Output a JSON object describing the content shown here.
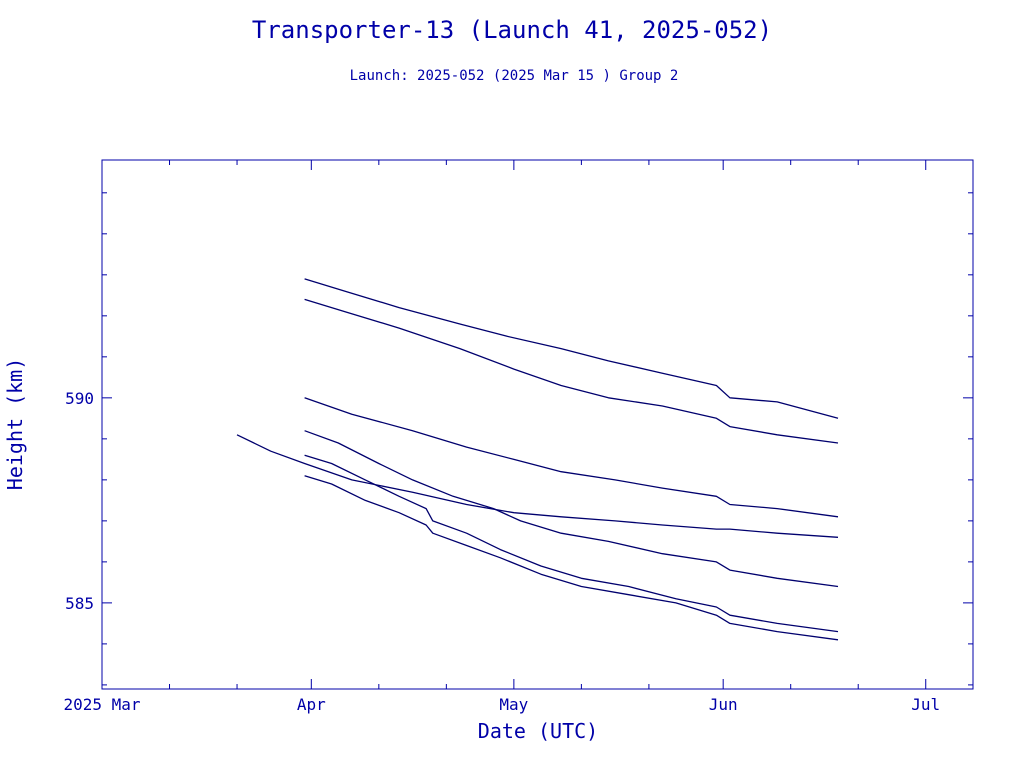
{
  "chart_data": {
    "type": "line",
    "title": "Transporter-13 (Launch 41, 2025-052)",
    "subtitle": "Launch: 2025-052  (2025 Mar 15 )  Group 2",
    "xlabel": "Date (UTC)",
    "ylabel": "Height (km)",
    "x_tick_labels": [
      "2025 Mar",
      "Apr",
      "May",
      "Jun",
      "Jul"
    ],
    "x_tick_dates": [
      "2025-03-01",
      "2025-04-01",
      "2025-05-01",
      "2025-06-01",
      "2025-07-01"
    ],
    "y_tick_labels": [
      "585",
      "590"
    ],
    "y_tick_values": [
      585,
      590
    ],
    "xlim": [
      "2025-03-01",
      "2025-07-08"
    ],
    "ylim": [
      582.9,
      595.8
    ],
    "grid": false,
    "colors": {
      "line": "#00006e",
      "axis": "#0000a8",
      "text": "#0000a8"
    },
    "series": [
      {
        "points": [
          [
            "2025-03-31",
            592.9
          ],
          [
            "2025-04-06",
            592.6
          ],
          [
            "2025-04-14",
            592.2
          ],
          [
            "2025-04-23",
            591.8
          ],
          [
            "2025-04-30",
            591.5
          ],
          [
            "2025-05-08",
            591.2
          ],
          [
            "2025-05-15",
            590.9
          ],
          [
            "2025-05-23",
            590.6
          ],
          [
            "2025-05-31",
            590.3
          ],
          [
            "2025-06-02",
            590.0
          ],
          [
            "2025-06-09",
            589.9
          ],
          [
            "2025-06-18",
            589.5
          ]
        ]
      },
      {
        "points": [
          [
            "2025-03-31",
            592.4
          ],
          [
            "2025-04-06",
            592.1
          ],
          [
            "2025-04-14",
            591.7
          ],
          [
            "2025-04-23",
            591.2
          ],
          [
            "2025-05-01",
            590.7
          ],
          [
            "2025-05-08",
            590.3
          ],
          [
            "2025-05-15",
            590.0
          ],
          [
            "2025-05-23",
            589.8
          ],
          [
            "2025-05-31",
            589.5
          ],
          [
            "2025-06-02",
            589.3
          ],
          [
            "2025-06-09",
            589.1
          ],
          [
            "2025-06-18",
            588.9
          ]
        ]
      },
      {
        "points": [
          [
            "2025-03-31",
            590.0
          ],
          [
            "2025-04-07",
            589.6
          ],
          [
            "2025-04-16",
            589.2
          ],
          [
            "2025-04-24",
            588.8
          ],
          [
            "2025-05-01",
            588.5
          ],
          [
            "2025-05-08",
            588.2
          ],
          [
            "2025-05-16",
            588.0
          ],
          [
            "2025-05-23",
            587.8
          ],
          [
            "2025-05-31",
            587.6
          ],
          [
            "2025-06-02",
            587.4
          ],
          [
            "2025-06-09",
            587.3
          ],
          [
            "2025-06-18",
            587.1
          ]
        ]
      },
      {
        "points": [
          [
            "2025-03-31",
            589.2
          ],
          [
            "2025-04-05",
            588.9
          ],
          [
            "2025-04-11",
            588.4
          ],
          [
            "2025-04-16",
            588.0
          ],
          [
            "2025-04-22",
            587.6
          ],
          [
            "2025-04-28",
            587.3
          ],
          [
            "2025-05-02",
            587.0
          ],
          [
            "2025-05-08",
            586.7
          ],
          [
            "2025-05-15",
            586.5
          ],
          [
            "2025-05-23",
            586.2
          ],
          [
            "2025-05-31",
            586.0
          ],
          [
            "2025-06-02",
            585.8
          ],
          [
            "2025-06-09",
            585.6
          ],
          [
            "2025-06-18",
            585.4
          ]
        ]
      },
      {
        "points": [
          [
            "2025-03-21",
            589.1
          ],
          [
            "2025-03-26",
            588.7
          ],
          [
            "2025-03-31",
            588.4
          ],
          [
            "2025-04-07",
            588.0
          ],
          [
            "2025-04-16",
            587.7
          ],
          [
            "2025-04-24",
            587.4
          ],
          [
            "2025-05-01",
            587.2
          ],
          [
            "2025-05-08",
            587.1
          ],
          [
            "2025-05-16",
            587.0
          ],
          [
            "2025-05-23",
            586.9
          ],
          [
            "2025-05-31",
            586.8
          ],
          [
            "2025-06-02",
            586.8
          ],
          [
            "2025-06-09",
            586.7
          ],
          [
            "2025-06-18",
            586.6
          ]
        ]
      },
      {
        "points": [
          [
            "2025-03-31",
            588.6
          ],
          [
            "2025-04-04",
            588.4
          ],
          [
            "2025-04-09",
            588.0
          ],
          [
            "2025-04-14",
            587.6
          ],
          [
            "2025-04-18",
            587.3
          ],
          [
            "2025-04-19",
            587.0
          ],
          [
            "2025-04-24",
            586.7
          ],
          [
            "2025-04-29",
            586.3
          ],
          [
            "2025-05-05",
            585.9
          ],
          [
            "2025-05-11",
            585.6
          ],
          [
            "2025-05-18",
            585.4
          ],
          [
            "2025-05-25",
            585.1
          ],
          [
            "2025-05-31",
            584.9
          ],
          [
            "2025-06-02",
            584.7
          ],
          [
            "2025-06-09",
            584.5
          ],
          [
            "2025-06-18",
            584.3
          ]
        ]
      },
      {
        "points": [
          [
            "2025-03-31",
            588.1
          ],
          [
            "2025-04-04",
            587.9
          ],
          [
            "2025-04-09",
            587.5
          ],
          [
            "2025-04-14",
            587.2
          ],
          [
            "2025-04-18",
            586.9
          ],
          [
            "2025-04-19",
            586.7
          ],
          [
            "2025-04-24",
            586.4
          ],
          [
            "2025-04-29",
            586.1
          ],
          [
            "2025-05-05",
            585.7
          ],
          [
            "2025-05-11",
            585.4
          ],
          [
            "2025-05-18",
            585.2
          ],
          [
            "2025-05-25",
            585.0
          ],
          [
            "2025-05-31",
            584.7
          ],
          [
            "2025-06-02",
            584.5
          ],
          [
            "2025-06-09",
            584.3
          ],
          [
            "2025-06-18",
            584.1
          ]
        ]
      }
    ]
  }
}
